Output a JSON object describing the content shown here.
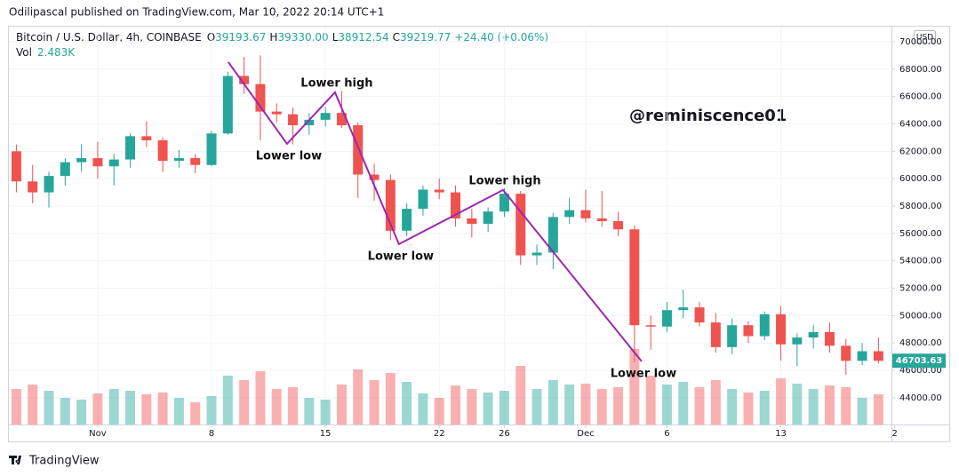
{
  "header": {
    "published": "Odilipascal published on TradingView.com, Mar 10, 2022 20:14 UTC+1",
    "symbol": "Bitcoin / U.S. Dollar, 4h, COINBASE",
    "ohlc": [
      {
        "key": "O",
        "value": "39193.67"
      },
      {
        "key": "H",
        "value": "39330.00"
      },
      {
        "key": "L",
        "value": "38912.54"
      },
      {
        "key": "C",
        "value": "39219.77"
      }
    ],
    "change": "+24.40 (+0.06%)",
    "vol_label": "Vol",
    "vol_value": "2.483K"
  },
  "footer": {
    "brand": "TradingView"
  },
  "chart_data": {
    "type": "candlestick",
    "watermark": "@reminiscence01",
    "currency": "USD",
    "x": [
      -5,
      -4,
      -3,
      -2,
      -1,
      0,
      1,
      2,
      3,
      4,
      5,
      6,
      7,
      8,
      9,
      10,
      11,
      12,
      13,
      14,
      15,
      16,
      17,
      18,
      19,
      20,
      21,
      22,
      23,
      24,
      25,
      26,
      27,
      28,
      29,
      30,
      31,
      32,
      33,
      34,
      35,
      36,
      37,
      38,
      39,
      40,
      41,
      42,
      43,
      44,
      45,
      46,
      47,
      48
    ],
    "open": [
      62000,
      59800,
      59000,
      60200,
      61200,
      61500,
      60900,
      61400,
      63100,
      62800,
      61300,
      61500,
      61000,
      63300,
      67500,
      66900,
      64900,
      64700,
      63900,
      64300,
      64800,
      63900,
      60300,
      59900,
      56200,
      57800,
      59200,
      59000,
      57100,
      56700,
      57600,
      58900,
      54400,
      54600,
      57200,
      57700,
      57100,
      56900,
      56300,
      49300,
      49200,
      50400,
      50600,
      49500,
      47700,
      49300,
      48500,
      50100,
      47900,
      48400,
      48800,
      47800,
      46700,
      47400
    ],
    "high": [
      62500,
      61000,
      60500,
      61500,
      62500,
      62700,
      61800,
      63300,
      64200,
      63000,
      62100,
      61800,
      63500,
      67800,
      68900,
      69000,
      65500,
      65200,
      64800,
      65200,
      66400,
      64100,
      61100,
      60300,
      58200,
      59500,
      60000,
      59500,
      57800,
      57900,
      59300,
      59100,
      55200,
      57500,
      58600,
      59200,
      59100,
      57600,
      56600,
      50000,
      51000,
      51900,
      51000,
      50200,
      49800,
      49600,
      50300,
      50700,
      48700,
      49300,
      49500,
      48300,
      48000,
      48400
    ],
    "low": [
      59000,
      58200,
      57900,
      59500,
      60500,
      60000,
      59500,
      60800,
      62300,
      60500,
      60800,
      60400,
      60900,
      63200,
      66200,
      62800,
      64100,
      62500,
      63200,
      63800,
      63700,
      58600,
      58400,
      55500,
      55800,
      57300,
      58500,
      56500,
      55700,
      56100,
      57200,
      53700,
      53700,
      53400,
      56700,
      56800,
      56500,
      55800,
      46600,
      47500,
      48800,
      49800,
      49200,
      47300,
      47200,
      48000,
      48200,
      46700,
      46300,
      47600,
      47300,
      45700,
      46400,
      46500
    ],
    "close": [
      59800,
      59000,
      60200,
      61200,
      61500,
      60900,
      61400,
      63100,
      62800,
      61300,
      61500,
      61000,
      63300,
      67500,
      66900,
      64900,
      64700,
      63900,
      64300,
      64800,
      63900,
      60300,
      59900,
      56200,
      57800,
      59200,
      59000,
      57100,
      56700,
      57600,
      58900,
      54400,
      54600,
      57200,
      57700,
      57100,
      56900,
      56300,
      49300,
      49200,
      50400,
      50600,
      49500,
      47700,
      49300,
      48500,
      50100,
      47900,
      48400,
      48800,
      47800,
      46700,
      47400,
      46700
    ],
    "volume": [
      40,
      45,
      38,
      30,
      28,
      35,
      40,
      38,
      34,
      36,
      30,
      25,
      32,
      55,
      50,
      60,
      40,
      42,
      30,
      28,
      45,
      62,
      50,
      58,
      48,
      35,
      30,
      44,
      40,
      36,
      38,
      66,
      40,
      50,
      45,
      46,
      40,
      42,
      85,
      55,
      45,
      48,
      42,
      50,
      40,
      36,
      38,
      52,
      46,
      40,
      44,
      42,
      30,
      34
    ],
    "up_color": "#26a69a",
    "down_color": "#ef5350",
    "xlim": [
      -5.46,
      48.8
    ],
    "xticks": [
      {
        "value": 0,
        "label": "Nov"
      },
      {
        "value": 7,
        "label": "8"
      },
      {
        "value": 14,
        "label": "15"
      },
      {
        "value": 21,
        "label": "22"
      },
      {
        "value": 25,
        "label": "26"
      },
      {
        "value": 30,
        "label": "Dec"
      },
      {
        "value": 35,
        "label": "6"
      },
      {
        "value": 42,
        "label": "13"
      },
      {
        "value": 49,
        "label": "2"
      }
    ],
    "ylim": [
      42050,
      71100
    ],
    "yticks": [
      {
        "value": 44000,
        "label": "44000.00"
      },
      {
        "value": 46000,
        "label": "46000.00"
      },
      {
        "value": 48000,
        "label": "48000.00"
      },
      {
        "value": 50000,
        "label": "50000.00"
      },
      {
        "value": 52000,
        "label": "52000.00"
      },
      {
        "value": 54000,
        "label": "54000.00"
      },
      {
        "value": 56000,
        "label": "56000.00"
      },
      {
        "value": 58000,
        "label": "58000.00"
      },
      {
        "value": 60000,
        "label": "60000.00"
      },
      {
        "value": 62000,
        "label": "62000.00"
      },
      {
        "value": 64000,
        "label": "64000.00"
      },
      {
        "value": 66000,
        "label": "66000.00"
      },
      {
        "value": 68000,
        "label": "68000.00"
      },
      {
        "value": 70000,
        "label": "70000.00"
      }
    ],
    "volume_lim": [
      0,
      150
    ],
    "last_price": 46703.63,
    "grid": true,
    "zigzag": {
      "color": "#9c27b0",
      "x": [
        8.03,
        11.64,
        14.59,
        18.52,
        24.92,
        33.44
      ],
      "y": [
        68509,
        62545,
        66305,
        55219,
        59174,
        46661
      ],
      "labels": [
        null,
        "Lower low",
        "Lower high",
        "Lower low",
        "Lower high",
        "Lower low"
      ]
    }
  }
}
